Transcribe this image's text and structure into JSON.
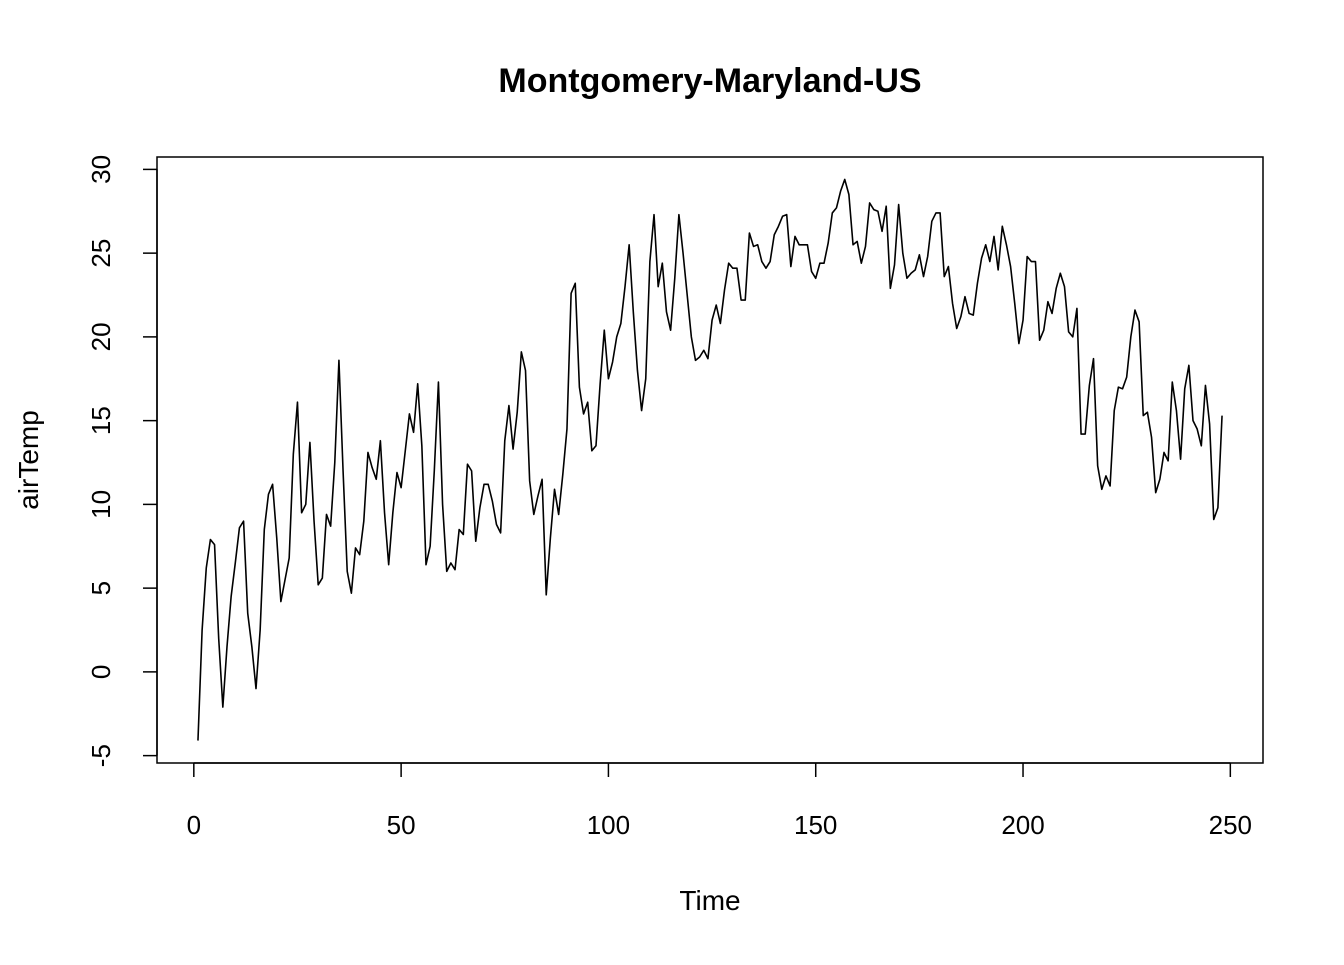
{
  "chart_data": {
    "type": "line",
    "title": "Montgomery-Maryland-US",
    "x_label": "Time",
    "y_label": "airTemp",
    "color": "#000000",
    "x": [
      1,
      2,
      3,
      4,
      5,
      6,
      7,
      8,
      9,
      10,
      11,
      12,
      13,
      14,
      15,
      16,
      17,
      18,
      19,
      20,
      21,
      22,
      23,
      24,
      25,
      26,
      27,
      28,
      29,
      30,
      31,
      32,
      33,
      34,
      35,
      36,
      37,
      38,
      39,
      40,
      41,
      42,
      43,
      44,
      45,
      46,
      47,
      48,
      49,
      50,
      51,
      52,
      53,
      54,
      55,
      56,
      57,
      58,
      59,
      60,
      61,
      62,
      63,
      64,
      65,
      66,
      67,
      68,
      69,
      70,
      71,
      72,
      73,
      74,
      75,
      76,
      77,
      78,
      79,
      80,
      81,
      82,
      83,
      84,
      85,
      86,
      87,
      88,
      89,
      90,
      91,
      92,
      93,
      94,
      95,
      96,
      97,
      98,
      99,
      100,
      101,
      102,
      103,
      104,
      105,
      106,
      107,
      108,
      109,
      110,
      111,
      112,
      113,
      114,
      115,
      116,
      117,
      118,
      119,
      120,
      121,
      122,
      123,
      124,
      125,
      126,
      127,
      128,
      129,
      130,
      131,
      132,
      133,
      134,
      135,
      136,
      137,
      138,
      139,
      140,
      141,
      142,
      143,
      144,
      145,
      146,
      147,
      148,
      149,
      150,
      151,
      152,
      153,
      154,
      155,
      156,
      157,
      158,
      159,
      160,
      161,
      162,
      163,
      164,
      165,
      166,
      167,
      168,
      169,
      170,
      171,
      172,
      173,
      174,
      175,
      176,
      177,
      178,
      179,
      180,
      181,
      182,
      183,
      184,
      185,
      186,
      187,
      188,
      189,
      190,
      191,
      192,
      193,
      194,
      195,
      196,
      197,
      198,
      199,
      200,
      201,
      202,
      203,
      204,
      205,
      206,
      207,
      208,
      209,
      210,
      211,
      212,
      213,
      214,
      215,
      216,
      217,
      218,
      219,
      220,
      221,
      222,
      223,
      224,
      225,
      226,
      227,
      228,
      229,
      230,
      231,
      232,
      233,
      234,
      235,
      236,
      237,
      238,
      239,
      240,
      241,
      242,
      243,
      244,
      245,
      246,
      247,
      248
    ],
    "values": [
      -4.1,
      2.5,
      6.2,
      7.9,
      7.6,
      2.0,
      -2.1,
      1.5,
      4.5,
      6.5,
      8.6,
      9.0,
      3.5,
      1.5,
      -1.0,
      2.5,
      8.5,
      10.6,
      11.2,
      8.0,
      4.2,
      5.5,
      6.8,
      13.0,
      16.1,
      9.5,
      10.0,
      13.7,
      9.0,
      5.2,
      5.6,
      9.4,
      8.7,
      12.5,
      18.6,
      12.0,
      6.0,
      4.7,
      7.4,
      7.0,
      9.0,
      13.1,
      12.2,
      11.5,
      13.8,
      9.5,
      6.4,
      9.5,
      11.9,
      11.0,
      13.2,
      15.4,
      14.3,
      17.2,
      13.5,
      6.4,
      7.5,
      12.0,
      17.3,
      10.0,
      6.0,
      6.5,
      6.1,
      8.5,
      8.2,
      12.4,
      12.0,
      7.8,
      9.8,
      11.2,
      11.2,
      10.2,
      8.8,
      8.3,
      13.8,
      15.9,
      13.3,
      15.5,
      19.1,
      18.0,
      11.4,
      9.4,
      10.5,
      11.5,
      4.6,
      8.0,
      10.9,
      9.4,
      11.8,
      14.5,
      22.6,
      23.2,
      17.0,
      15.4,
      16.1,
      13.2,
      13.5,
      17.2,
      20.4,
      17.5,
      18.5,
      20.0,
      20.8,
      23.0,
      25.5,
      21.5,
      18.0,
      15.6,
      17.5,
      24.5,
      27.3,
      23.0,
      24.4,
      21.5,
      20.4,
      23.5,
      27.3,
      25.0,
      22.5,
      20.0,
      18.6,
      18.8,
      19.2,
      18.7,
      21.0,
      21.9,
      20.8,
      22.8,
      24.4,
      24.1,
      24.1,
      22.2,
      22.2,
      26.2,
      25.4,
      25.5,
      24.5,
      24.1,
      24.5,
      26.1,
      26.6,
      27.2,
      27.3,
      24.2,
      26.0,
      25.5,
      25.5,
      25.5,
      23.9,
      23.5,
      24.4,
      24.4,
      25.6,
      27.4,
      27.7,
      28.7,
      29.4,
      28.5,
      25.5,
      25.7,
      24.4,
      25.4,
      28.0,
      27.6,
      27.5,
      26.3,
      27.8,
      22.9,
      24.3,
      27.9,
      25.0,
      23.5,
      23.8,
      24.0,
      24.9,
      23.6,
      24.8,
      26.9,
      27.4,
      27.4,
      23.6,
      24.2,
      22.0,
      20.5,
      21.2,
      22.4,
      21.4,
      21.3,
      23.2,
      24.7,
      25.5,
      24.5,
      26.0,
      24.0,
      26.6,
      25.5,
      24.2,
      22.0,
      19.6,
      21.0,
      24.8,
      24.5,
      24.5,
      19.8,
      20.4,
      22.1,
      21.4,
      22.9,
      23.8,
      23.0,
      20.3,
      20.0,
      21.7,
      14.2,
      14.2,
      17.1,
      18.7,
      12.3,
      10.9,
      11.7,
      11.1,
      15.6,
      17.0,
      16.9,
      17.6,
      20.0,
      21.6,
      20.9,
      15.3,
      15.5,
      14.0,
      10.7,
      11.5,
      13.1,
      12.6,
      17.3,
      15.6,
      12.7,
      16.9,
      18.3,
      15.0,
      14.5,
      13.5,
      17.1,
      14.8,
      9.1,
      9.8,
      15.3
    ],
    "xlim": [
      -8.88,
      257.88
    ],
    "ylim": [
      -5.44,
      30.74
    ],
    "xticks": [
      0,
      50,
      100,
      150,
      200,
      250
    ],
    "yticks": [
      -5,
      0,
      5,
      10,
      15,
      20,
      25,
      30
    ]
  }
}
